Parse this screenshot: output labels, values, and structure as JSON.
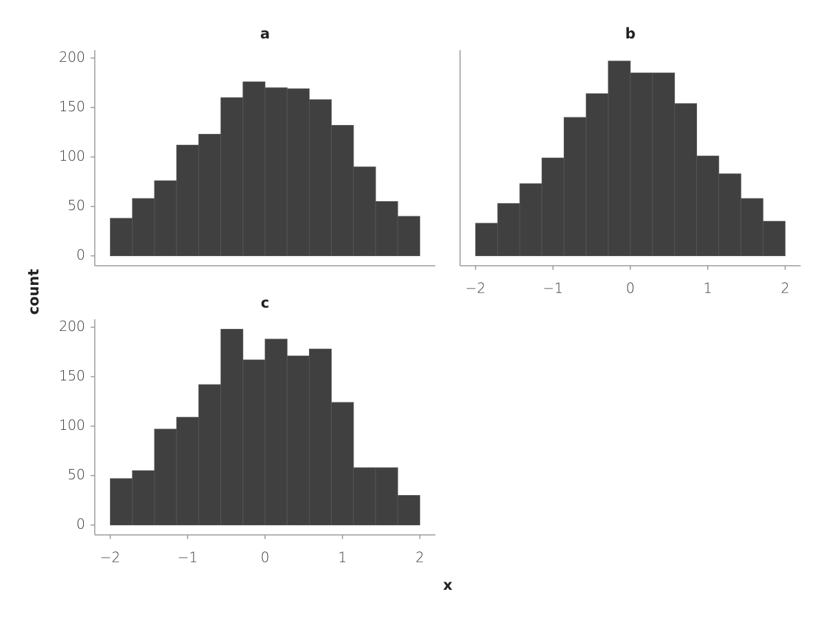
{
  "chart_data": {
    "type": "histogram",
    "xlabel": "x",
    "ylabel": "count",
    "color": "#404040",
    "bins": [
      -2,
      -1.7143,
      -1.4286,
      -1.1429,
      -0.8571,
      -0.5714,
      -0.2857,
      0,
      0.2857,
      0.5714,
      0.8571,
      1.1429,
      1.4286,
      1.7143,
      2
    ],
    "xlim": [
      -2.2,
      2.2
    ],
    "xticks": [
      {
        "value": -2,
        "label": "−2"
      },
      {
        "value": -1,
        "label": "−1"
      },
      0,
      1,
      2
    ],
    "ylim": [
      -10,
      208
    ],
    "yticks": [
      0,
      50,
      100,
      150,
      200
    ],
    "grid": false,
    "facets": [
      {
        "title": "a",
        "values": [
          38,
          58,
          76,
          112,
          123,
          160,
          176,
          170,
          169,
          158,
          132,
          90,
          55,
          40
        ]
      },
      {
        "title": "b",
        "values": [
          33,
          53,
          73,
          99,
          140,
          164,
          197,
          185,
          185,
          154,
          101,
          83,
          58,
          35
        ]
      },
      {
        "title": "c",
        "values": [
          47,
          55,
          97,
          109,
          142,
          198,
          167,
          188,
          171,
          178,
          124,
          58,
          58,
          30
        ]
      }
    ]
  }
}
